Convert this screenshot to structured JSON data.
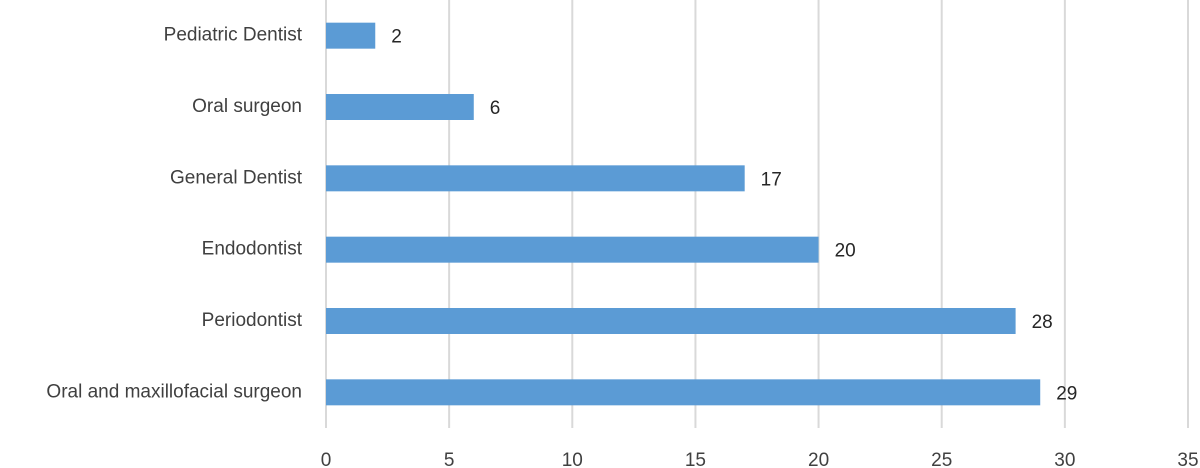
{
  "chart_data": {
    "type": "bar",
    "orientation": "horizontal",
    "categories": [
      "Pediatric Dentist",
      "Oral surgeon",
      "General Dentist",
      "Endodontist",
      "Periodontist",
      "Oral and maxillofacial surgeon"
    ],
    "values": [
      2,
      6,
      17,
      20,
      28,
      29
    ],
    "color": "#5b9bd5",
    "xlim": [
      0,
      35
    ],
    "xticks": [
      0,
      5,
      10,
      15,
      20,
      25,
      30,
      35
    ],
    "grid": true,
    "data_labels": true
  }
}
